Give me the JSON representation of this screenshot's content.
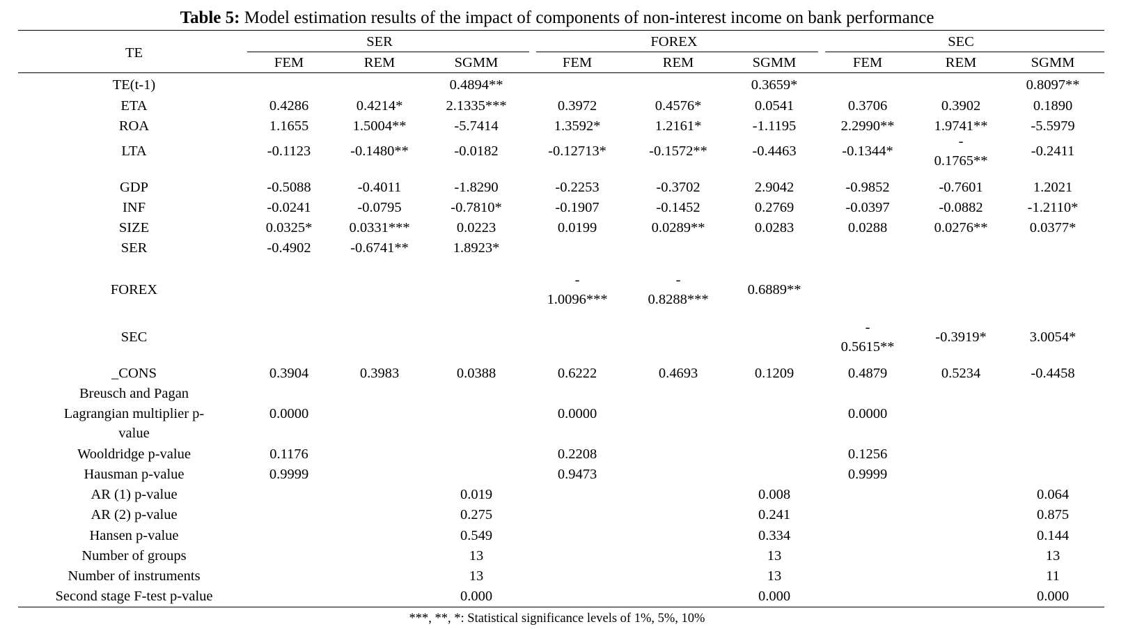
{
  "title": {
    "bold": "Table 5:",
    "text": " Model estimation results of the impact of components of non-interest income on bank performance"
  },
  "header": {
    "te": "TE",
    "groups": [
      "SER",
      "FOREX",
      "SEC"
    ],
    "subcols": [
      "FEM",
      "REM",
      "SGMM",
      "FEM",
      "REM",
      "SGMM",
      "FEM",
      "REM",
      "SGMM"
    ]
  },
  "rows": [
    {
      "label": "TE(t-1)",
      "cells": [
        "",
        "",
        "0.4894**",
        "",
        "",
        "0.3659*",
        "",
        "",
        "0.8097**"
      ]
    },
    {
      "label": "ETA",
      "cells": [
        "0.4286",
        "0.4214*",
        "2.1335***",
        "0.3972",
        "0.4576*",
        "0.0541",
        "0.3706",
        "0.3902",
        "0.1890"
      ]
    },
    {
      "label": "ROA",
      "cells": [
        "1.1655",
        "1.5004**",
        "-5.7414",
        "1.3592*",
        "1.2161*",
        "-1.1195",
        "2.2990**",
        "1.9741**",
        "-5.5979"
      ]
    },
    {
      "label": "LTA",
      "cells": [
        "-0.1123",
        "-0.1480**",
        "-0.0182",
        "-0.12713*",
        "-0.1572**",
        "-0.4463",
        "-0.1344*",
        "-\n0.1765**",
        "-0.2411"
      ]
    },
    {
      "label": "GDP",
      "cells": [
        "-0.5088",
        "-0.4011",
        "-1.8290",
        "-0.2253",
        "-0.3702",
        "2.9042",
        "-0.9852",
        "-0.7601",
        "1.2021"
      ]
    },
    {
      "label": "INF",
      "cells": [
        "-0.0241",
        "-0.0795",
        "-0.7810*",
        "-0.1907",
        "-0.1452",
        "0.2769",
        "-0.0397",
        "-0.0882",
        "-1.2110*"
      ]
    },
    {
      "label": "SIZE",
      "cells": [
        "0.0325*",
        "0.0331***",
        "0.0223",
        "0.0199",
        "0.0289**",
        "0.0283",
        "0.0288",
        "0.0276**",
        "0.0377*"
      ]
    },
    {
      "label": "SER",
      "cells": [
        "-0.4902",
        "-0.6741**",
        "1.8923*",
        "",
        "",
        "",
        "",
        "",
        ""
      ]
    },
    {
      "label": "FOREX",
      "cells": [
        "",
        "",
        "",
        "-\n1.0096***",
        "-\n0.8288***",
        "0.6889**",
        "",
        "",
        ""
      ]
    },
    {
      "label": "SEC",
      "cells": [
        "",
        "",
        "",
        "",
        "",
        "",
        "-\n0.5615**",
        "-0.3919*",
        "3.0054*"
      ]
    },
    {
      "label": "_CONS",
      "cells": [
        "0.3904",
        "0.3983",
        "0.0388",
        "0.6222",
        "0.4693",
        "0.1209",
        "0.4879",
        "0.5234",
        "-0.4458"
      ]
    },
    {
      "label": "Breusch and Pagan",
      "cells": [
        "",
        "",
        "",
        "",
        "",
        "",
        "",
        "",
        ""
      ]
    },
    {
      "label": "Lagrangian multiplier p-\nvalue",
      "cells": [
        "0.0000",
        "",
        "",
        "0.0000",
        "",
        "",
        "0.0000",
        "",
        ""
      ]
    },
    {
      "label": "Wooldridge p-value",
      "cells": [
        "0.1176",
        "",
        "",
        "0.2208",
        "",
        "",
        "0.1256",
        "",
        ""
      ]
    },
    {
      "label": "Hausman p-value",
      "cells": [
        "0.9999",
        "",
        "",
        "0.9473",
        "",
        "",
        "0.9999",
        "",
        ""
      ]
    },
    {
      "label": "AR (1) p-value",
      "cells": [
        "",
        "",
        "0.019",
        "",
        "",
        "0.008",
        "",
        "",
        "0.064"
      ]
    },
    {
      "label": "AR (2) p-value",
      "cells": [
        "",
        "",
        "0.275",
        "",
        "",
        "0.241",
        "",
        "",
        "0.875"
      ]
    },
    {
      "label": "Hansen p-value",
      "cells": [
        "",
        "",
        "0.549",
        "",
        "",
        "0.334",
        "",
        "",
        "0.144"
      ]
    },
    {
      "label": "Number of groups",
      "cells": [
        "",
        "",
        "13",
        "",
        "",
        "13",
        "",
        "",
        "13"
      ]
    },
    {
      "label": "Number of instruments",
      "cells": [
        "",
        "",
        "13",
        "",
        "",
        "13",
        "",
        "",
        "11"
      ]
    },
    {
      "label": "Second stage F-test p-value",
      "cells": [
        "",
        "",
        "0.000",
        "",
        "",
        "0.000",
        "",
        "",
        "0.000"
      ]
    }
  ],
  "footnote": "***, **, *: Statistical significance levels of 1%, 5%, 10%"
}
